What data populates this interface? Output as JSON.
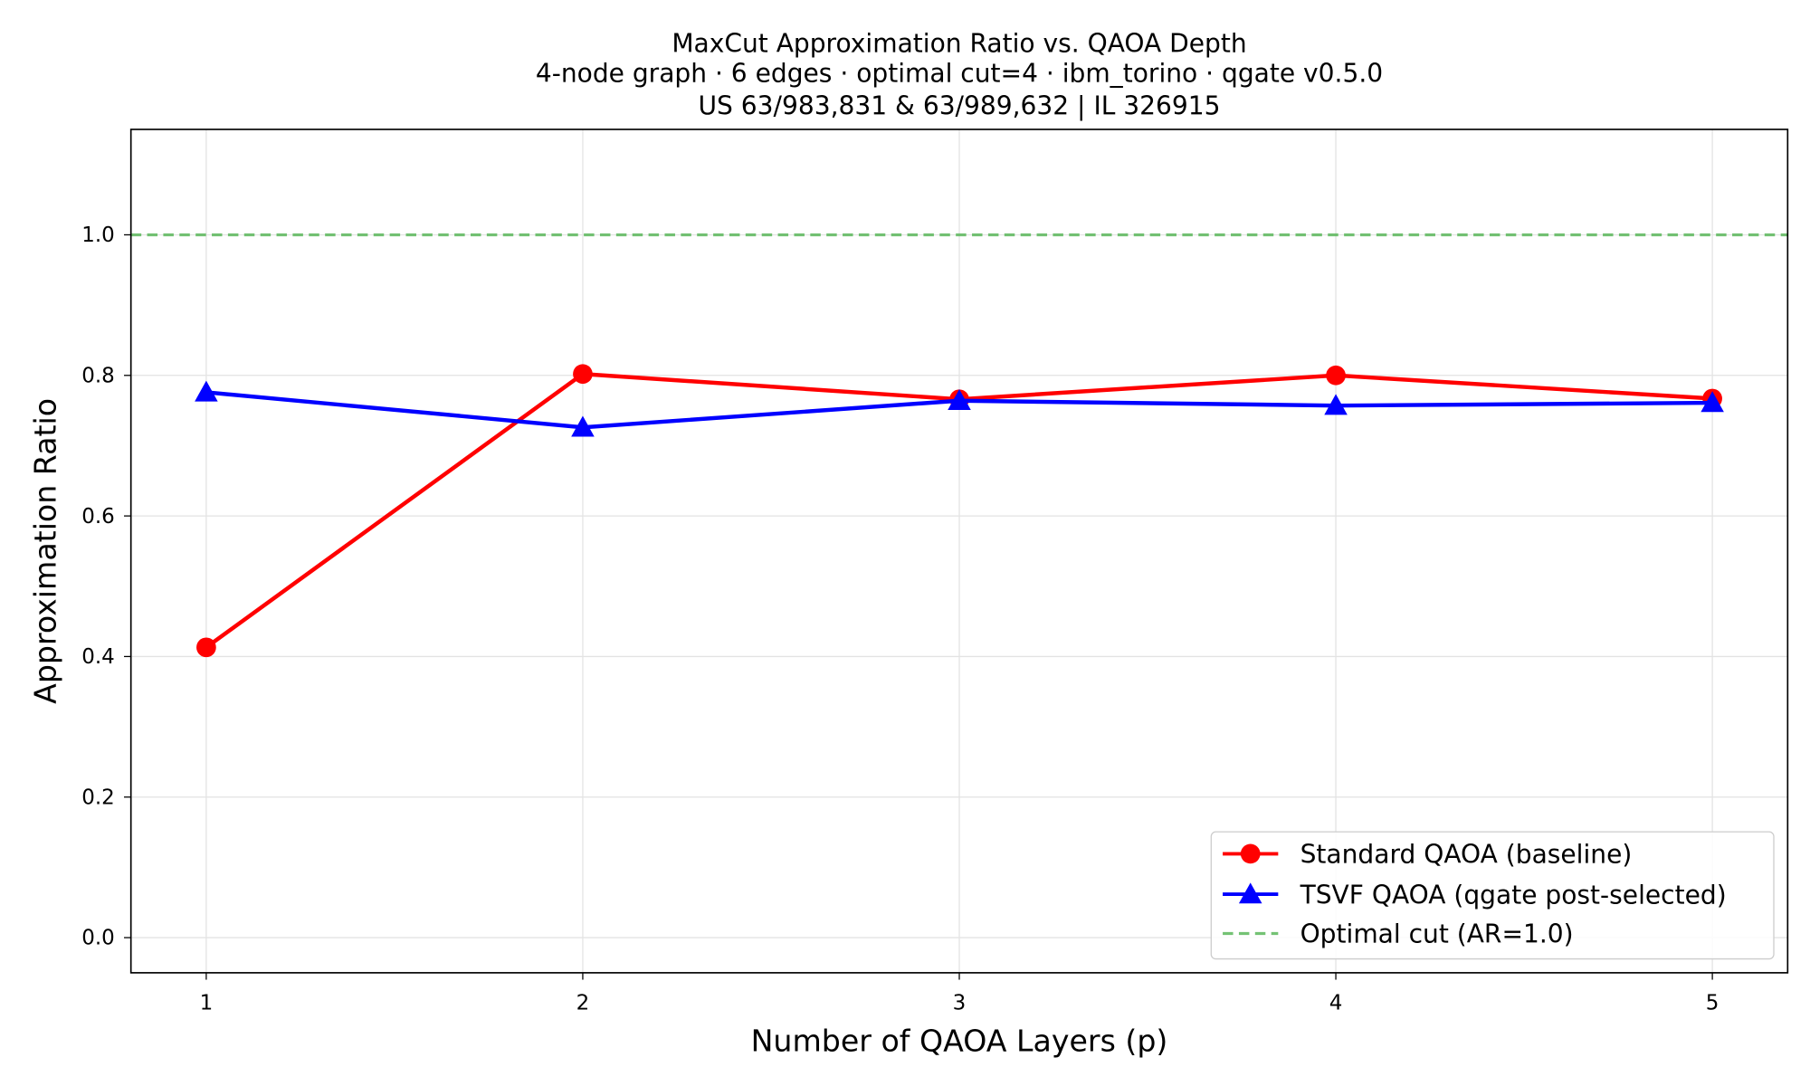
{
  "chart_data": {
    "type": "line",
    "title": [
      "MaxCut Approximation Ratio vs. QAOA Depth",
      "4-node graph · 6 edges · optimal cut=4 · ibm_torino · qgate v0.5.0",
      "US 63/983,831 & 63/989,632 | IL 326915"
    ],
    "xlabel": "Number of QAOA Layers (p)",
    "ylabel": "Approximation Ratio",
    "x": [
      1,
      2,
      3,
      4,
      5
    ],
    "xticks": [
      "1",
      "2",
      "3",
      "4",
      "5"
    ],
    "yticks": [
      "0.0",
      "0.2",
      "0.4",
      "0.6",
      "0.8",
      "1.0"
    ],
    "xlim": [
      0.8,
      5.2
    ],
    "ylim": [
      -0.05,
      1.15
    ],
    "grid": true,
    "legend_placement": "lower-right",
    "series": [
      {
        "name": "Standard QAOA (baseline)",
        "values": [
          0.413,
          0.802,
          0.766,
          0.8,
          0.767
        ],
        "color": "#ff0000",
        "marker": "circle",
        "linestyle": "solid"
      },
      {
        "name": "TSVF QAOA (qgate post-selected)",
        "values": [
          0.776,
          0.726,
          0.764,
          0.757,
          0.761
        ],
        "color": "#0000ff",
        "marker": "triangle",
        "linestyle": "solid"
      }
    ],
    "reference_lines": [
      {
        "name": "Optimal cut (AR=1.0)",
        "y": 1.0,
        "color": "#5cb85c",
        "linestyle": "dashed"
      }
    ]
  }
}
